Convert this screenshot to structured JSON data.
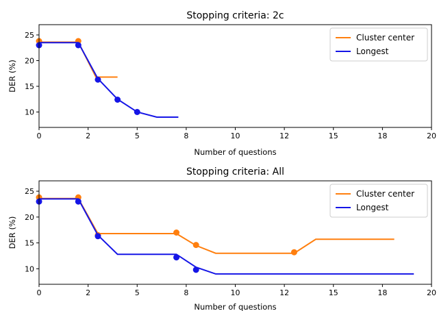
{
  "colors": {
    "cluster": "#ff7f0e",
    "longest": "#1515e6"
  },
  "chart_data": [
    {
      "type": "line",
      "title": "Stopping criteria: 2c",
      "xlabel": "Number of questions",
      "ylabel": "DER (%)",
      "xlim": [
        0,
        20
      ],
      "ylim": [
        7,
        27
      ],
      "xticks": [
        0,
        2.5,
        5,
        7.5,
        10,
        12.5,
        15,
        17.5,
        20
      ],
      "xtick_labels": [
        "0",
        "2",
        "5",
        "8",
        "10",
        "12",
        "15",
        "18",
        "20"
      ],
      "yticks": [
        10,
        15,
        20,
        25
      ],
      "ytick_labels": [
        "10",
        "15",
        "20",
        "25"
      ],
      "legend": {
        "placement": "top-right"
      },
      "series": [
        {
          "name": "Cluster center",
          "color": "#ff7f0e",
          "line": [
            [
              0,
              23.6
            ],
            [
              2,
              23.6
            ],
            [
              2.9,
              16.8
            ],
            [
              4.0,
              16.8
            ]
          ],
          "points": [
            [
              0,
              23.8
            ],
            [
              2,
              23.8
            ]
          ]
        },
        {
          "name": "Longest",
          "color": "#1515e6",
          "line": [
            [
              0,
              23.5
            ],
            [
              2,
              23.5
            ],
            [
              3.0,
              16.5
            ],
            [
              4.0,
              12.5
            ],
            [
              5.0,
              10.0
            ],
            [
              6.0,
              9.0
            ],
            [
              7.1,
              9.0
            ]
          ],
          "points": [
            [
              0,
              23.0
            ],
            [
              2,
              23.0
            ],
            [
              3.0,
              16.3
            ],
            [
              4.0,
              12.4
            ],
            [
              5.0,
              10.0
            ]
          ]
        }
      ]
    },
    {
      "type": "line",
      "title": "Stopping criteria: All",
      "xlabel": "Number of questions",
      "ylabel": "DER (%)",
      "xlim": [
        0,
        20
      ],
      "ylim": [
        7,
        27
      ],
      "xticks": [
        0,
        2.5,
        5,
        7.5,
        10,
        12.5,
        15,
        17.5,
        20
      ],
      "xtick_labels": [
        "0",
        "2",
        "5",
        "8",
        "10",
        "12",
        "15",
        "18",
        "20"
      ],
      "yticks": [
        10,
        15,
        20,
        25
      ],
      "ytick_labels": [
        "10",
        "15",
        "20",
        "25"
      ],
      "legend": {
        "placement": "top-right"
      },
      "series": [
        {
          "name": "Cluster center",
          "color": "#ff7f0e",
          "line": [
            [
              0,
              23.6
            ],
            [
              2,
              23.6
            ],
            [
              3.0,
              16.8
            ],
            [
              7.0,
              16.8
            ],
            [
              8.0,
              14.5
            ],
            [
              9.0,
              13.0
            ],
            [
              13.0,
              13.0
            ],
            [
              14.1,
              15.7
            ],
            [
              18.1,
              15.7
            ]
          ],
          "points": [
            [
              0,
              23.8
            ],
            [
              2,
              23.8
            ],
            [
              3.0,
              16.5
            ],
            [
              7.0,
              17.0
            ],
            [
              8.0,
              14.6
            ],
            [
              13.0,
              13.2
            ]
          ]
        },
        {
          "name": "Longest",
          "color": "#1515e6",
          "line": [
            [
              0,
              23.5
            ],
            [
              2,
              23.5
            ],
            [
              3.0,
              16.5
            ],
            [
              4.0,
              12.8
            ],
            [
              7.0,
              12.8
            ],
            [
              8.0,
              10.3
            ],
            [
              9.0,
              9.0
            ],
            [
              19.1,
              9.0
            ]
          ],
          "points": [
            [
              0,
              23.0
            ],
            [
              2,
              23.0
            ],
            [
              3.0,
              16.3
            ],
            [
              7.0,
              12.2
            ],
            [
              8.0,
              9.8
            ]
          ]
        }
      ]
    }
  ]
}
